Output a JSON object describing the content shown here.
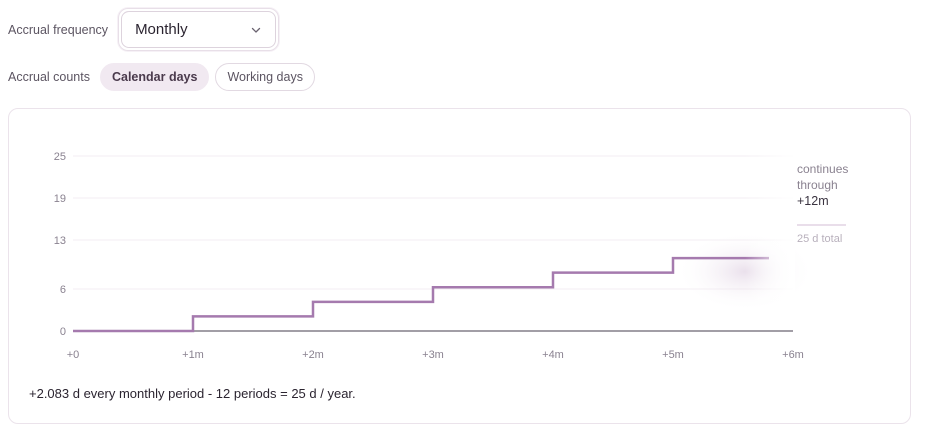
{
  "controls": {
    "frequency_label": "Accrual frequency",
    "frequency_value": "Monthly",
    "counts_label": "Accrual counts",
    "counts_options": [
      {
        "label": "Calendar days",
        "active": true
      },
      {
        "label": "Working days",
        "active": false
      }
    ]
  },
  "chart_data": {
    "type": "line",
    "step": true,
    "x_ticks": [
      "+0",
      "+1m",
      "+2m",
      "+3m",
      "+4m",
      "+5m",
      "+6m"
    ],
    "y_ticks": [
      0,
      6,
      13,
      19,
      25
    ],
    "ylim": [
      0,
      25
    ],
    "xlim": [
      0,
      6
    ],
    "x": [
      0,
      1,
      2,
      3,
      4,
      5,
      5.8
    ],
    "values": [
      0,
      2.083,
      4.167,
      6.25,
      8.333,
      10.417,
      10.417
    ],
    "fade_after": 5.6,
    "continuation": {
      "text_line1": "continues",
      "text_line2": "through",
      "text_strong": "+12m",
      "total_label": "25 d total"
    },
    "colors": {
      "line": "#a57aae",
      "axis": "#6a6370",
      "grid": "#f3eef3"
    }
  },
  "summary": "+2.083 d every monthly period - 12 periods = 25 d / year."
}
